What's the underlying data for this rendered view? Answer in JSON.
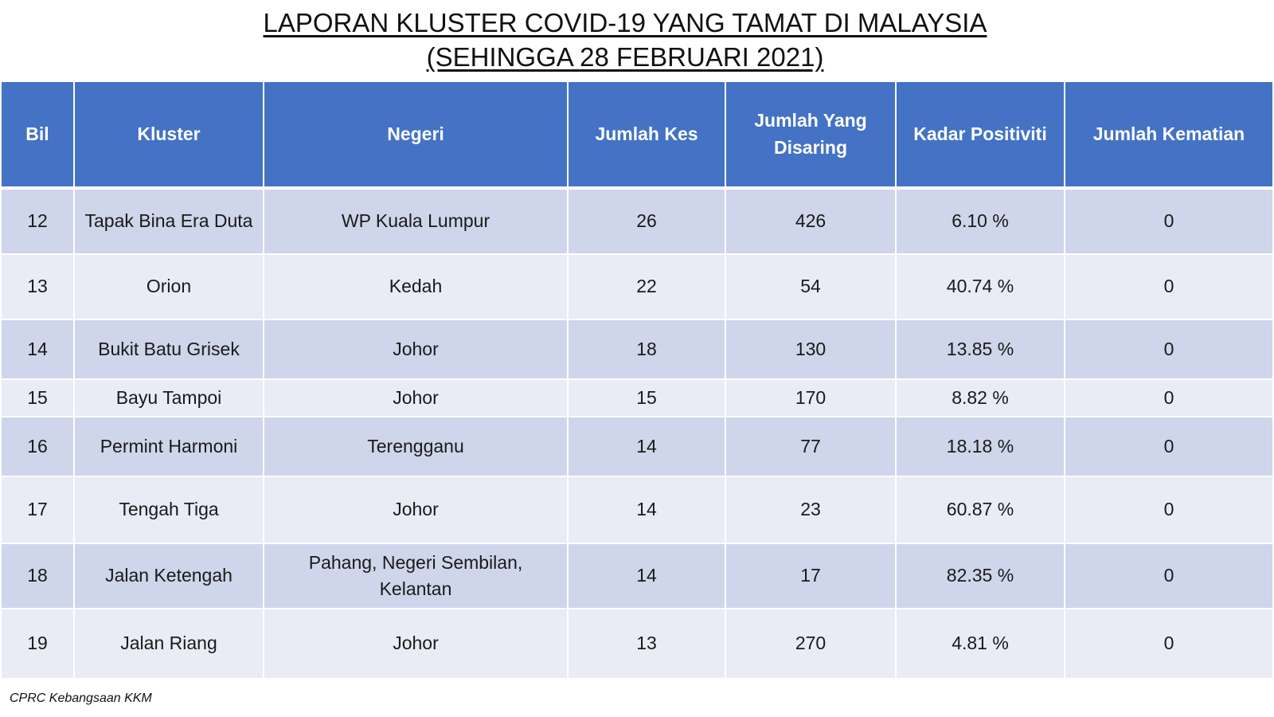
{
  "title": {
    "line1": "LAPORAN KLUSTER COVID-19 YANG TAMAT DI MALAYSIA",
    "line2": "(SEHINGGA  28 FEBRUARI 2021)"
  },
  "table": {
    "headers": [
      "Bil",
      "Kluster",
      "Negeri",
      "Jumlah Kes",
      "Jumlah Yang Disaring",
      "Kadar Positiviti",
      "Jumlah Kematian"
    ],
    "rows": [
      [
        "12",
        "Tapak Bina Era Duta",
        "WP Kuala Lumpur",
        "26",
        "426",
        "6.10 %",
        "0"
      ],
      [
        "13",
        "Orion",
        "Kedah",
        "22",
        "54",
        "40.74 %",
        "0"
      ],
      [
        "14",
        "Bukit Batu Grisek",
        "Johor",
        "18",
        "130",
        "13.85 %",
        "0"
      ],
      [
        "15",
        "Bayu Tampoi",
        "Johor",
        "15",
        "170",
        "8.82 %",
        "0"
      ],
      [
        "16",
        "Permint Harmoni",
        "Terengganu",
        "14",
        "77",
        "18.18 %",
        "0"
      ],
      [
        "17",
        "Tengah Tiga",
        "Johor",
        "14",
        "23",
        "60.87 %",
        "0"
      ],
      [
        "18",
        "Jalan Ketengah",
        "Pahang, Negeri Sembilan, Kelantan",
        "14",
        "17",
        "82.35 %",
        "0"
      ],
      [
        "19",
        "Jalan Riang",
        "Johor",
        "13",
        "270",
        "4.81 %",
        "0"
      ]
    ]
  },
  "footer": "CPRC Kebangsaan KKM",
  "colors": {
    "header_bg": "#4472c4",
    "row_odd_bg": "#cfd5ea",
    "row_even_bg": "#e9ebf5"
  }
}
